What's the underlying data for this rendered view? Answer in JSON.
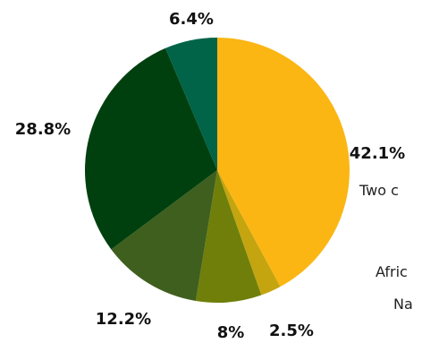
{
  "chart_data": {
    "type": "pie",
    "values": [
      42.1,
      2.5,
      8.0,
      12.2,
      28.8,
      6.4
    ],
    "data_labels": [
      "42.1%",
      "2.5%",
      "8%",
      "12.2%",
      "28.8%",
      "6.4%"
    ],
    "colors": [
      "#fbb614",
      "#c4a50f",
      "#6f7f0a",
      "#3f5f1e",
      "#00400f",
      "#016347"
    ],
    "start_angle_deg": 0,
    "direction": "clockwise"
  },
  "side_text": {
    "line1": "Two c",
    "line2": "Afric",
    "line3": "Na"
  }
}
